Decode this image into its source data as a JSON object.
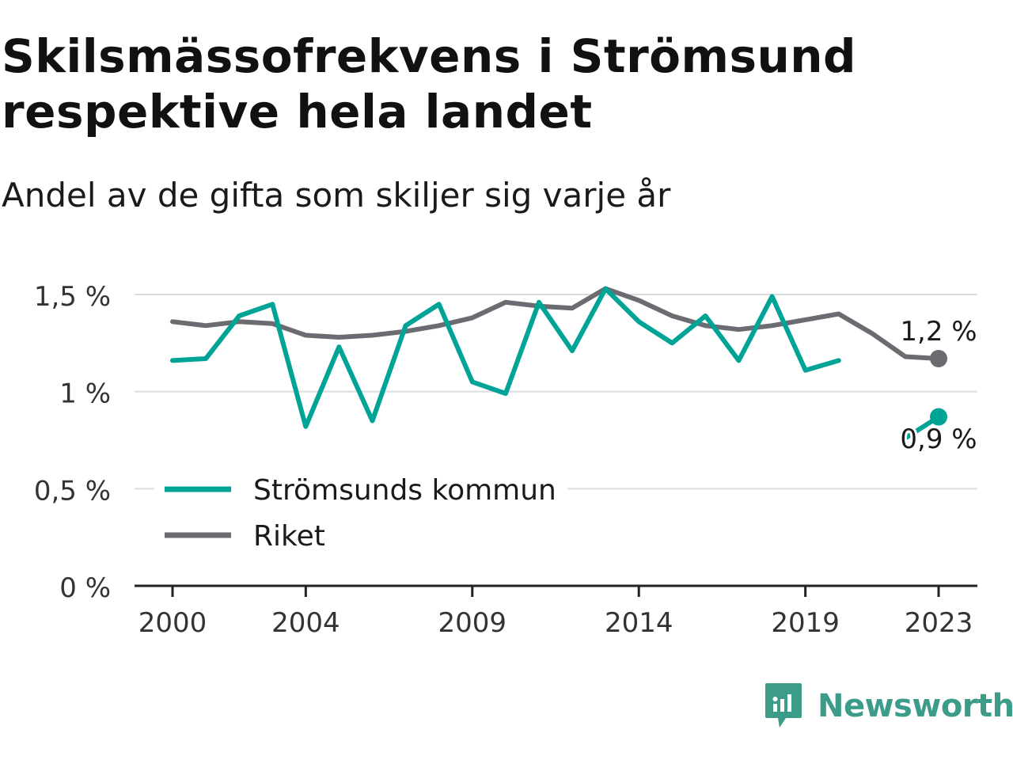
{
  "title": "Skilsmässofrekvens i Strömsund respektive hela landet",
  "subtitle": "Andel av de gifta som skiljer sig varje år",
  "brand": {
    "name": "Newsworthy",
    "color": "#3d9c89"
  },
  "chart_data": {
    "type": "line",
    "title": "Skilsmässofrekvens i Strömsund respektive hela landet",
    "subtitle": "Andel av de gifta som skiljer sig varje år",
    "x": [
      2000,
      2001,
      2002,
      2003,
      2004,
      2005,
      2006,
      2007,
      2008,
      2009,
      2010,
      2011,
      2012,
      2013,
      2014,
      2015,
      2016,
      2017,
      2018,
      2019,
      2020,
      2021,
      2022,
      2023
    ],
    "x_ticks": [
      "2000",
      "2004",
      "2009",
      "2014",
      "2019",
      "2023"
    ],
    "y_ticks": [
      "0 %",
      "0,5 %",
      "1 %",
      "1,5 %"
    ],
    "y_tick_values": [
      0,
      0.5,
      1,
      1.5
    ],
    "ylim": [
      0,
      1.6
    ],
    "grid": true,
    "legend_position": "bottom-left",
    "series": [
      {
        "name": "Strömsunds kommun",
        "color": "#00a497",
        "values": [
          1.16,
          1.17,
          1.39,
          1.45,
          0.82,
          1.23,
          0.85,
          1.34,
          1.45,
          1.05,
          0.99,
          1.46,
          1.21,
          1.53,
          1.36,
          1.25,
          1.39,
          1.16,
          1.49,
          1.11,
          1.16,
          null,
          0.76,
          0.87
        ],
        "end_label": "0,9 %"
      },
      {
        "name": "Riket",
        "color": "#6b6b72",
        "values": [
          1.36,
          1.34,
          1.36,
          1.35,
          1.29,
          1.28,
          1.29,
          1.31,
          1.34,
          1.38,
          1.46,
          1.44,
          1.43,
          1.53,
          1.47,
          1.39,
          1.34,
          1.32,
          1.34,
          1.37,
          1.4,
          1.3,
          1.18,
          1.17
        ],
        "end_label": "1,2 %"
      }
    ]
  }
}
